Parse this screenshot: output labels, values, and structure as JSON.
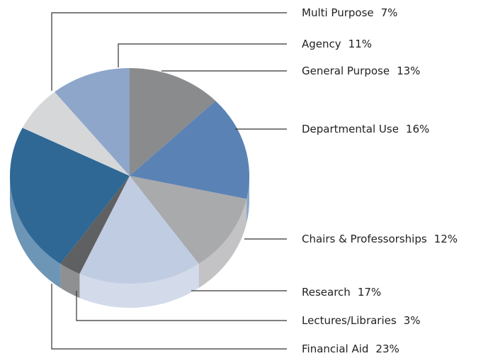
{
  "chart_data": {
    "type": "pie",
    "categories": [
      "General Purpose",
      "Departmental Use",
      "Chairs & Professorships",
      "Research",
      "Lectures/Libraries",
      "Financial Aid",
      "Multi Purpose",
      "Agency"
    ],
    "values": [
      13,
      16,
      12,
      17,
      3,
      23,
      7,
      11
    ],
    "value_labels": [
      "13%",
      "16%",
      "12%",
      "17%",
      "3%",
      "23%",
      "7%",
      "11%"
    ],
    "colors": [
      "#8a8b8d",
      "#5b82b4",
      "#a9aaac",
      "#c0cce2",
      "#5f6062",
      "#2f6795",
      "#d6d7d9",
      "#8ea6c9"
    ]
  }
}
